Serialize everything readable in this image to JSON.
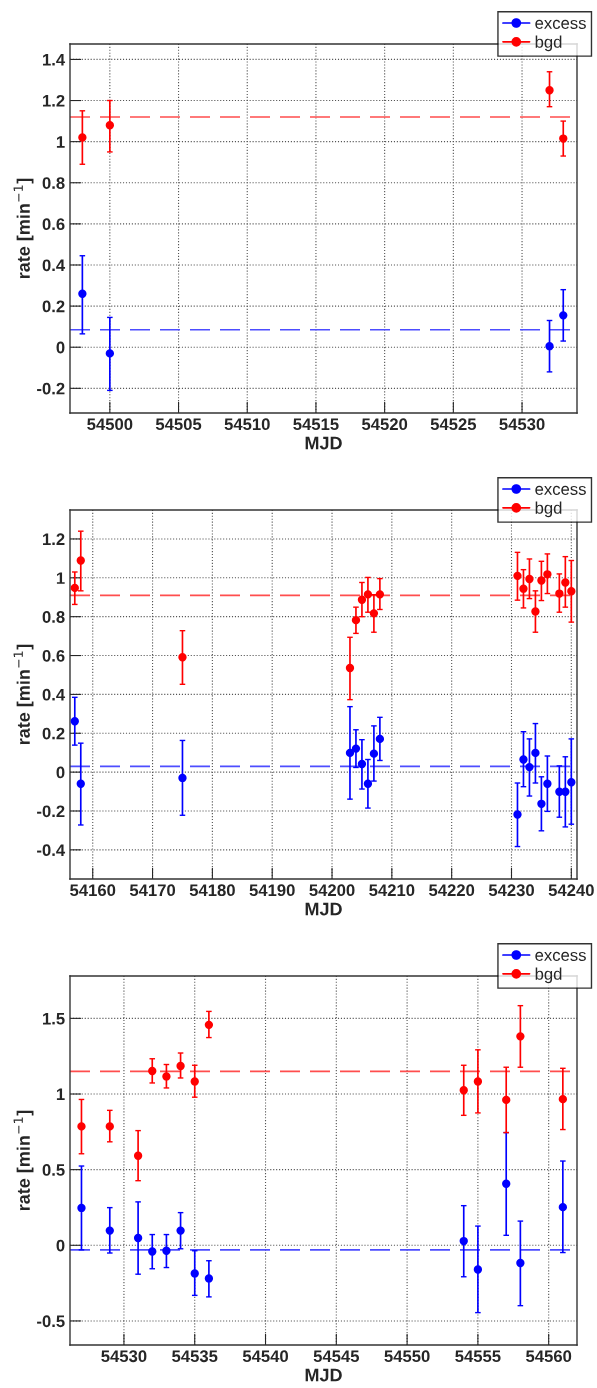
{
  "chart_data": [
    {
      "type": "scatter",
      "xlabel": "MJD",
      "ylabel": "rate [min$^{−1}$]",
      "xlim": [
        54497.1,
        54534.0
      ],
      "ylim": [
        -0.32,
        1.475
      ],
      "xticks": [
        54500,
        54505,
        54510,
        54515,
        54520,
        54525,
        54530
      ],
      "yticks": [
        -0.2,
        0,
        0.2,
        0.4,
        0.6,
        0.8,
        1,
        1.2,
        1.4
      ],
      "grid": true,
      "legend": "top right",
      "marker": "circle",
      "series": [
        {
          "name": "excess",
          "color": "#0000ff",
          "x": [
            54498,
            54500,
            54532,
            54533
          ],
          "values": [
            0.26,
            -0.03,
            0.005,
            0.155
          ],
          "errors": [
            [
              0.065,
              0.445
            ],
            [
              -0.21,
              0.145
            ],
            [
              -0.12,
              0.13
            ],
            [
              0.03,
              0.28
            ]
          ]
        },
        {
          "name": "bgd",
          "color": "#ff0000",
          "x": [
            54498,
            54500,
            54532,
            54533
          ],
          "values": [
            1.02,
            1.08,
            1.25,
            1.015
          ],
          "errors": [
            [
              0.89,
              1.15
            ],
            [
              0.95,
              1.2
            ],
            [
              1.17,
              1.34
            ],
            [
              0.93,
              1.1
            ]
          ]
        }
      ],
      "ref_lines": [
        {
          "axis": "y",
          "value": 0.085,
          "color": "#4d4dff",
          "line_style": "dashed"
        },
        {
          "axis": "y",
          "value": 1.12,
          "color": "#ff4d4d",
          "line_style": "dashed"
        }
      ]
    },
    {
      "type": "scatter",
      "xlabel": "MJD",
      "ylabel": "rate [min$^{−1}$]",
      "xlim": [
        54156.2,
        54240.95
      ],
      "ylim": [
        -0.55,
        1.349
      ],
      "xticks": [
        54160,
        54170,
        54180,
        54190,
        54200,
        54210,
        54220,
        54230,
        54240
      ],
      "yticks": [
        -0.4,
        -0.2,
        0,
        0.2,
        0.4,
        0.6,
        0.8,
        1,
        1.2
      ],
      "grid": true,
      "legend": "top right",
      "marker": "circle",
      "series": [
        {
          "name": "excess",
          "color": "#0000ff",
          "x": [
            54157,
            54158,
            54175,
            54203,
            54204,
            54205,
            54206,
            54207,
            54208,
            54231,
            54232,
            54233,
            54234,
            54235,
            54236,
            54238,
            54239,
            54240
          ],
          "values": [
            0.262,
            -0.06,
            -0.03,
            0.099,
            0.121,
            0.042,
            -0.06,
            0.095,
            0.171,
            -0.218,
            0.065,
            0.026,
            0.099,
            -0.163,
            -0.06,
            -0.101,
            -0.101,
            -0.052
          ],
          "errors": [
            [
              0.139,
              0.385
            ],
            [
              -0.272,
              0.149
            ],
            [
              -0.222,
              0.163
            ],
            [
              -0.139,
              0.337
            ],
            [
              0.024,
              0.218
            ],
            [
              -0.087,
              0.167
            ],
            [
              -0.185,
              0.065
            ],
            [
              -0.046,
              0.238
            ],
            [
              0.06,
              0.282
            ],
            [
              -0.383,
              -0.056
            ],
            [
              -0.075,
              0.208
            ],
            [
              -0.123,
              0.171
            ],
            [
              -0.056,
              0.25
            ],
            [
              -0.302,
              -0.024
            ],
            [
              -0.202,
              0.083
            ],
            [
              -0.232,
              0.032
            ],
            [
              -0.282,
              0.079
            ],
            [
              -0.268,
              0.171
            ]
          ]
        },
        {
          "name": "bgd",
          "color": "#ff0000",
          "x": [
            54157,
            54158,
            54175,
            54203,
            54204,
            54205,
            54206,
            54207,
            54208,
            54231,
            54232,
            54233,
            54234,
            54235,
            54236,
            54238,
            54239,
            54240
          ],
          "values": [
            0.948,
            1.089,
            0.591,
            0.536,
            0.782,
            0.887,
            0.915,
            0.817,
            0.915,
            1.01,
            0.944,
            0.994,
            0.827,
            0.986,
            1.018,
            0.919,
            0.976,
            0.931
          ],
          "errors": [
            [
              0.863,
              1.03
            ],
            [
              0.933,
              1.24
            ],
            [
              0.452,
              0.728
            ],
            [
              0.373,
              0.694
            ],
            [
              0.714,
              0.849
            ],
            [
              0.8,
              0.976
            ],
            [
              0.823,
              1.002
            ],
            [
              0.72,
              0.913
            ],
            [
              0.837,
              0.996
            ],
            [
              0.885,
              1.131
            ],
            [
              0.845,
              1.042
            ],
            [
              0.893,
              1.097
            ],
            [
              0.72,
              0.933
            ],
            [
              0.883,
              1.085
            ],
            [
              0.919,
              1.123
            ],
            [
              0.823,
              1.02
            ],
            [
              0.849,
              1.109
            ],
            [
              0.772,
              1.089
            ]
          ]
        }
      ],
      "ref_lines": [
        {
          "axis": "y",
          "value": 0.03,
          "color": "#4d4dff",
          "line_style": "dashed"
        },
        {
          "axis": "y",
          "value": 0.91,
          "color": "#ff4d4d",
          "line_style": "dashed"
        }
      ]
    },
    {
      "type": "scatter",
      "xlabel": "MJD",
      "ylabel": "rate [min$^{−1}$]",
      "xlim": [
        54526.19,
        54562.0
      ],
      "ylim": [
        -0.659,
        1.78
      ],
      "xticks": [
        54530,
        54535,
        54540,
        54545,
        54550,
        54555,
        54560
      ],
      "yticks": [
        -0.5,
        0,
        0.5,
        1,
        1.5
      ],
      "grid": true,
      "legend": "top right",
      "marker": "circle",
      "series": [
        {
          "name": "excess",
          "color": "#0000ff",
          "x": [
            54527,
            54529,
            54531,
            54532,
            54533,
            54534,
            54535,
            54536,
            54554,
            54555,
            54557,
            54558,
            54561
          ],
          "values": [
            0.247,
            0.097,
            0.048,
            -0.041,
            -0.036,
            0.097,
            -0.186,
            -0.219,
            0.028,
            -0.16,
            0.407,
            -0.117,
            0.252
          ],
          "errors": [
            [
              -0.03,
              0.524
            ],
            [
              -0.051,
              0.249
            ],
            [
              -0.191,
              0.287
            ],
            [
              -0.155,
              0.071
            ],
            [
              -0.147,
              0.071
            ],
            [
              -0.023,
              0.216
            ],
            [
              -0.331,
              -0.036
            ],
            [
              -0.341,
              -0.102
            ],
            [
              -0.208,
              0.262
            ],
            [
              -0.445,
              0.127
            ],
            [
              0.066,
              0.745
            ],
            [
              -0.399,
              0.16
            ],
            [
              -0.048,
              0.557
            ]
          ]
        },
        {
          "name": "bgd",
          "color": "#ff0000",
          "x": [
            54527,
            54529,
            54531,
            54532,
            54533,
            54534,
            54535,
            54536,
            54554,
            54555,
            54557,
            54558,
            54561
          ],
          "values": [
            0.786,
            0.786,
            0.592,
            1.152,
            1.116,
            1.185,
            1.083,
            1.457,
            1.025,
            1.083,
            0.961,
            1.381,
            0.966
          ],
          "errors": [
            [
              0.605,
              0.964
            ],
            [
              0.684,
              0.892
            ],
            [
              0.427,
              0.758
            ],
            [
              1.073,
              1.233
            ],
            [
              1.04,
              1.195
            ],
            [
              1.106,
              1.271
            ],
            [
              0.979,
              1.19
            ],
            [
              1.373,
              1.546
            ],
            [
              0.859,
              1.19
            ],
            [
              0.875,
              1.292
            ],
            [
              0.745,
              1.177
            ],
            [
              1.177,
              1.584
            ],
            [
              0.765,
              1.17
            ]
          ]
        }
      ],
      "ref_lines": [
        {
          "axis": "y",
          "value": -0.03,
          "color": "#4d4dff",
          "line_style": "dashed"
        },
        {
          "axis": "y",
          "value": 1.15,
          "color": "#ff4d4d",
          "line_style": "dashed"
        }
      ]
    }
  ]
}
